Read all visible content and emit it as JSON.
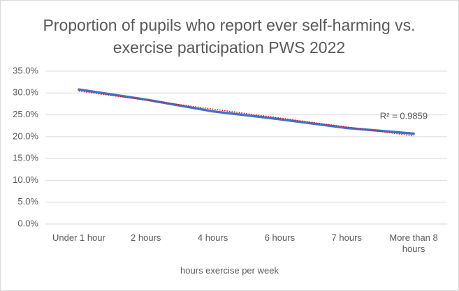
{
  "chart_data": {
    "type": "line",
    "title": "Proportion of pupils who report ever self-harming vs. exercise participation PWS 2022",
    "x_label": "hours exercise per week",
    "categories": [
      "Under 1 hour",
      "2 hours",
      "4 hours",
      "6 hours",
      "7 hours",
      "More than 8 hours"
    ],
    "values": [
      30.8,
      28.5,
      25.8,
      24.0,
      22.0,
      20.7
    ],
    "color": "#4472c4",
    "trendline": {
      "type": "linear",
      "color": "#ff0000",
      "annotation": "R² = 0.9859"
    },
    "ylim": [
      0,
      35
    ],
    "yticks": [
      {
        "value": 0,
        "label": "0.0%"
      },
      {
        "value": 5,
        "label": "5.0%"
      },
      {
        "value": 10,
        "label": "10.0%"
      },
      {
        "value": 15,
        "label": "15.0%"
      },
      {
        "value": 20,
        "label": "20.0%"
      },
      {
        "value": 25,
        "label": "25.0%"
      },
      {
        "value": 30,
        "label": "30.0%"
      },
      {
        "value": 35,
        "label": "35.0%"
      }
    ],
    "grid": true
  }
}
